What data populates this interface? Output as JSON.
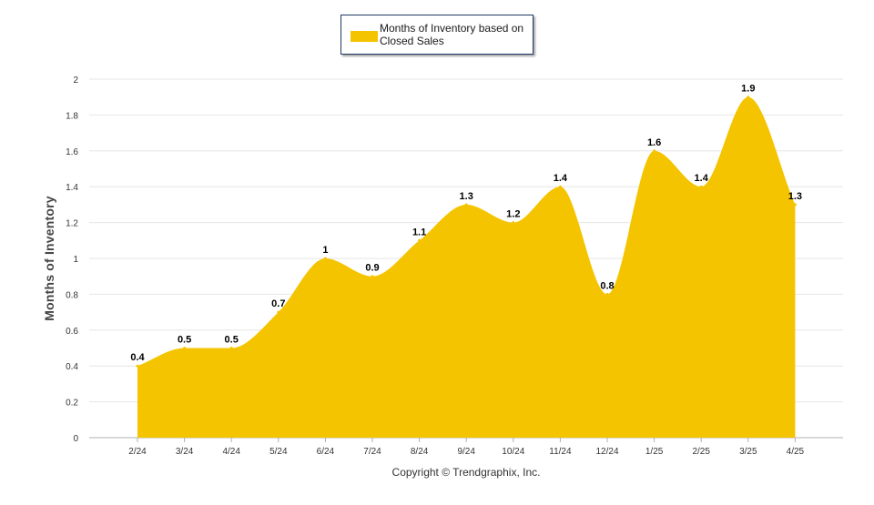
{
  "chart_data": {
    "type": "area",
    "categories": [
      "2/24",
      "3/24",
      "4/24",
      "5/24",
      "6/24",
      "7/24",
      "8/24",
      "9/24",
      "10/24",
      "11/24",
      "12/24",
      "1/25",
      "2/25",
      "3/25",
      "4/25"
    ],
    "series": [
      {
        "name": "Months of Inventory based on Closed Sales",
        "values": [
          0.4,
          0.5,
          0.5,
          0.7,
          1,
          0.9,
          1.1,
          1.3,
          1.2,
          1.4,
          0.8,
          1.6,
          1.4,
          1.9,
          1.3
        ],
        "labels": [
          "0.4",
          "0.5",
          "0.5",
          "0.7",
          "1",
          "0.9",
          "1.1",
          "1.3",
          "1.2",
          "1.4",
          "0.8",
          "1.6",
          "1.4",
          "1.9",
          "1.3"
        ]
      }
    ],
    "ylabel": "Months of Inventory",
    "xlabel": "",
    "ylim": [
      0,
      2
    ],
    "yticks": [
      "0",
      "0.2",
      "0.4",
      "0.6",
      "0.8",
      "1",
      "1.2",
      "1.4",
      "1.6",
      "1.8",
      "2"
    ],
    "grid": true,
    "legend": "top-center",
    "colors": {
      "area": "#f5c400",
      "grid": "#e6e6e6",
      "axis": "#b0b0b0",
      "legend_border": "#1f3864"
    }
  },
  "footer": {
    "copyright": "Copyright © Trendgraphix, Inc."
  }
}
